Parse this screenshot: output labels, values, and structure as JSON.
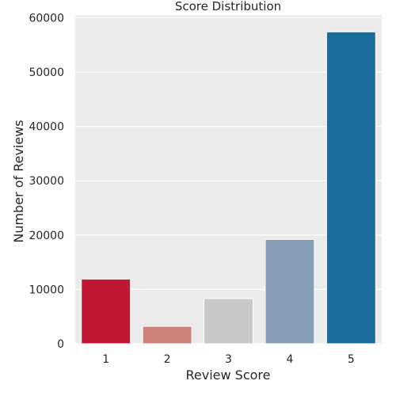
{
  "chart_data": {
    "type": "bar",
    "title": "Score Distribution",
    "xlabel": "Review Score",
    "ylabel": "Number of Reviews",
    "categories": [
      "1",
      "2",
      "3",
      "4",
      "5"
    ],
    "values": [
      11900,
      3200,
      8300,
      19200,
      57400
    ],
    "colors": [
      "#c21833",
      "#cf807b",
      "#c8c8c8",
      "#879db8",
      "#1a6b9e"
    ],
    "ylim": [
      0,
      60500
    ],
    "yticks": [
      0,
      10000,
      20000,
      30000,
      40000,
      50000,
      60000
    ],
    "grid": true,
    "background": "#ebebeb",
    "gridColor": "#ffffff"
  }
}
